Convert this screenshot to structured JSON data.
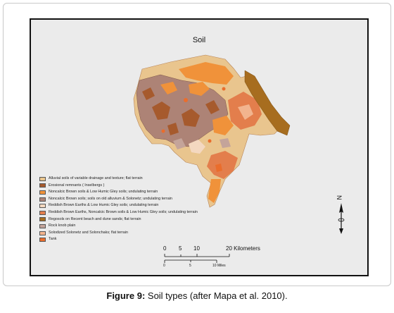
{
  "map": {
    "title": "Soil",
    "legend": [
      {
        "label": "Alluvial soils of variable drainage and texture; flat terrain",
        "color": "#e9c58e"
      },
      {
        "label": "Erosional remnants ( Inselbergs )",
        "color": "#a65a2d"
      },
      {
        "label": "Noncalcic Brown soils & Low Humic Gley soils; undulating terrain",
        "color": "#f0923a"
      },
      {
        "label": "Noncalcic Brown soils; soils on old alluvium & Solonetz; undulating terrain",
        "color": "#ad8376"
      },
      {
        "label": "Reddish Brown Earths & Low Humic Gley soils; undulating terrain",
        "color": "#f4d8c0"
      },
      {
        "label": "Reddish Brown Earths, Noncalcic Brown soils & Low Humic Gley soils; undulating terrain",
        "color": "#e37e4c"
      },
      {
        "label": "Regosols on Recent beach and dune sands; flat terrain",
        "color": "#a76d1f"
      },
      {
        "label": "Rock knob plain",
        "color": "#c4a49a"
      },
      {
        "label": "Solodized Solonetz and Solonchaks; flat terrain",
        "color": "#f2b48e"
      },
      {
        "label": "Tank",
        "color": "#ea6d2c"
      }
    ],
    "scale": {
      "km_ticks": [
        "0",
        "5",
        "10",
        "20 Kilometers"
      ],
      "mile_ticks": [
        "0",
        "5",
        "10 Miles"
      ]
    },
    "north_label": "N"
  },
  "caption": {
    "label": "Figure 9:",
    "text": " Soil types (after Mapa et al. 2010)."
  }
}
